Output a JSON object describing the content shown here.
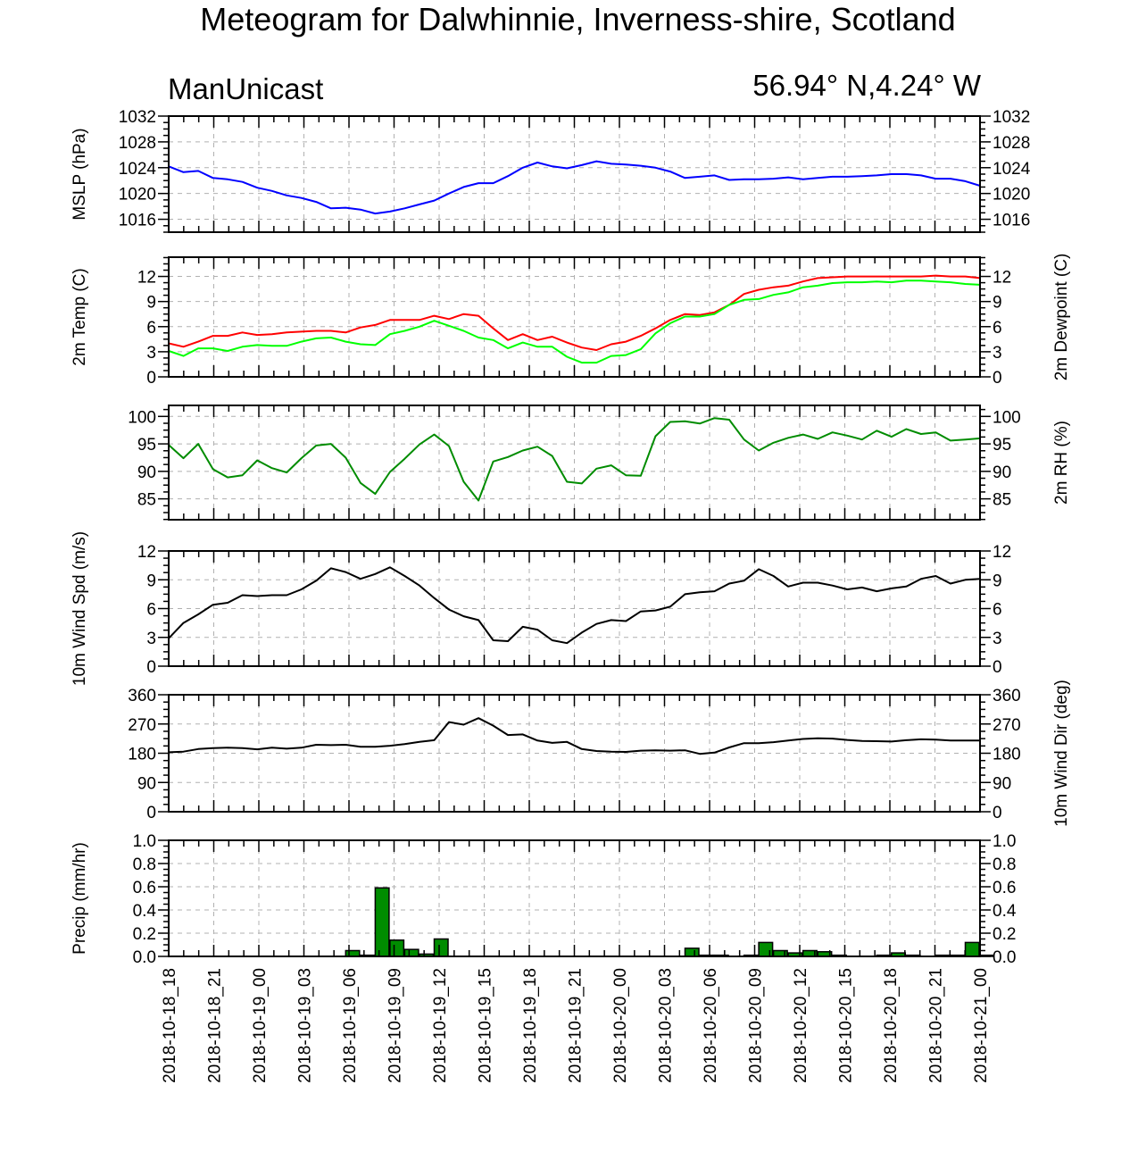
{
  "title": "Meteogram for Dalwhinnie, Inverness-shire, Scotland",
  "model": "ManUnicast",
  "coords": "56.94° N,4.24° W",
  "chart_data": {
    "type": "meteogram",
    "time_labels": [
      "2018-10-18_18",
      "2018-10-18_21",
      "2018-10-19_00",
      "2018-10-19_03",
      "2018-10-19_06",
      "2018-10-19_09",
      "2018-10-19_12",
      "2018-10-19_15",
      "2018-10-19_18",
      "2018-10-19_21",
      "2018-10-20_00",
      "2018-10-20_03",
      "2018-10-20_06",
      "2018-10-20_09",
      "2018-10-20_12",
      "2018-10-20_15",
      "2018-10-20_18",
      "2018-10-20_21",
      "2018-10-21_00"
    ],
    "panels": [
      {
        "ylabel": "MSLP (hPa)",
        "ylabel_right": "",
        "ylim": [
          1014,
          1032
        ],
        "ticks": [
          1016,
          1020,
          1024,
          1028,
          1032
        ],
        "right_ticks": true,
        "type": "line",
        "series": [
          {
            "color": "#0000ff",
            "values": [
              1024.2,
              1023.3,
              1023.5,
              1022.4,
              1022.2,
              1021.8,
              1020.9,
              1020.4,
              1019.7,
              1019.3,
              1018.7,
              1017.7,
              1017.8,
              1017.5,
              1016.9,
              1017.2,
              1017.7,
              1018.3,
              1018.9,
              1020.0,
              1021.0,
              1021.6,
              1021.6,
              1022.7,
              1024.0,
              1024.8,
              1024.2,
              1023.9,
              1024.4,
              1025.0,
              1024.6,
              1024.5,
              1024.3,
              1024.0,
              1023.4,
              1022.4,
              1022.6,
              1022.8,
              1022.1,
              1022.2,
              1022.2,
              1022.3,
              1022.5,
              1022.2,
              1022.4,
              1022.6,
              1022.6,
              1022.7,
              1022.8,
              1023.0,
              1023.0,
              1022.8,
              1022.3,
              1022.3,
              1021.9,
              1021.2
            ]
          }
        ]
      },
      {
        "ylabel": "2m Temp (C)",
        "ylabel_right": "2m Dewpoint (C)",
        "ylim": [
          0,
          14.3
        ],
        "ticks": [
          0,
          3,
          6,
          9,
          12
        ],
        "right_ticks": true,
        "type": "line",
        "series": [
          {
            "color": "#ff0000",
            "values": [
              4.0,
              3.6,
              4.2,
              4.9,
              4.9,
              5.3,
              5.0,
              5.1,
              5.3,
              5.4,
              5.5,
              5.5,
              5.3,
              5.9,
              6.2,
              6.8,
              6.8,
              6.8,
              7.3,
              6.9,
              7.5,
              7.3,
              5.8,
              4.4,
              5.1,
              4.4,
              4.8,
              4.1,
              3.5,
              3.2,
              3.9,
              4.2,
              4.9,
              5.8,
              6.8,
              7.5,
              7.4,
              7.7,
              8.6,
              9.9,
              10.4,
              10.7,
              10.9,
              11.4,
              11.8,
              11.9,
              12.0,
              12.0,
              12.0,
              12.0,
              12.0,
              12.0,
              12.1,
              12.0,
              12.0,
              11.8
            ]
          },
          {
            "color": "#00ff00",
            "values": [
              3.1,
              2.5,
              3.4,
              3.4,
              3.1,
              3.6,
              3.8,
              3.7,
              3.7,
              4.2,
              4.6,
              4.7,
              4.2,
              3.9,
              3.8,
              5.1,
              5.5,
              6.0,
              6.7,
              6.1,
              5.5,
              4.7,
              4.4,
              3.4,
              4.1,
              3.6,
              3.6,
              2.4,
              1.7,
              1.7,
              2.5,
              2.6,
              3.3,
              5.2,
              6.4,
              7.2,
              7.2,
              7.5,
              8.6,
              9.2,
              9.3,
              9.8,
              10.1,
              10.7,
              10.9,
              11.2,
              11.3,
              11.3,
              11.4,
              11.3,
              11.5,
              11.5,
              11.4,
              11.3,
              11.1,
              11.0
            ]
          }
        ]
      },
      {
        "ylabel": "",
        "ylabel_right": "2m RH (%)",
        "ylim": [
          81.2,
          102
        ],
        "ticks": [
          85,
          90,
          95,
          100
        ],
        "right_ticks": true,
        "type": "line",
        "series": [
          {
            "color": "#008c00",
            "values": [
              94.8,
              92.4,
              95.0,
              90.4,
              88.9,
              89.3,
              92.0,
              90.6,
              89.8,
              92.4,
              94.7,
              95.0,
              92.5,
              87.9,
              85.9,
              89.9,
              92.3,
              94.9,
              96.7,
              94.6,
              88.1,
              84.7,
              91.8,
              92.6,
              93.8,
              94.5,
              92.8,
              88.1,
              87.8,
              90.5,
              91.1,
              89.3,
              89.2,
              96.4,
              99.0,
              99.1,
              98.7,
              99.7,
              99.4,
              95.8,
              93.8,
              95.2,
              96.1,
              96.7,
              95.9,
              97.1,
              96.5,
              95.8,
              97.4,
              96.3,
              97.7,
              96.8,
              97.1,
              95.6,
              95.8,
              96.0
            ]
          }
        ]
      },
      {
        "ylabel": "10m Wind Spd (m/s)",
        "ylabel_right": "",
        "ylim": [
          0,
          12
        ],
        "ticks": [
          0,
          3,
          6,
          9,
          12
        ],
        "right_ticks": true,
        "type": "line",
        "series": [
          {
            "color": "#000000",
            "values": [
              2.9,
              4.5,
              5.4,
              6.4,
              6.6,
              7.4,
              7.3,
              7.4,
              7.4,
              8.0,
              8.9,
              10.2,
              9.8,
              9.1,
              9.6,
              10.3,
              9.4,
              8.4,
              7.1,
              5.9,
              5.2,
              4.8,
              2.7,
              2.6,
              4.1,
              3.8,
              2.7,
              2.4,
              3.5,
              4.4,
              4.8,
              4.7,
              5.7,
              5.8,
              6.2,
              7.5,
              7.7,
              7.8,
              8.6,
              8.9,
              10.1,
              9.4,
              8.3,
              8.7,
              8.7,
              8.4,
              8.0,
              8.2,
              7.8,
              8.1,
              8.3,
              9.1,
              9.4,
              8.6,
              9.0,
              9.1
            ]
          }
        ]
      },
      {
        "ylabel": "",
        "ylabel_right": "10m Wind Dir (deg)",
        "ylim": [
          0,
          360
        ],
        "ticks": [
          0,
          90,
          180,
          270,
          360
        ],
        "right_ticks": true,
        "type": "line",
        "series": [
          {
            "color": "#000000",
            "values": [
              183,
              185,
              193,
              196,
              197,
              196,
              192,
              197,
              194,
              197,
              206,
              205,
              206,
              200,
              200,
              203,
              208,
              215,
              220,
              276,
              268,
              288,
              265,
              236,
              238,
              219,
              212,
              215,
              193,
              187,
              185,
              184,
              188,
              189,
              188,
              189,
              178,
              182,
              198,
              211,
              211,
              214,
              219,
              224,
              226,
              225,
              221,
              218,
              217,
              216,
              220,
              223,
              222,
              219,
              219,
              219
            ]
          }
        ]
      },
      {
        "ylabel": "Precip (mm/hr)",
        "ylabel_right": "",
        "ylim": [
          0,
          1.0
        ],
        "ticks": [
          0.0,
          0.2,
          0.4,
          0.6,
          0.8,
          1.0
        ],
        "right_ticks": true,
        "type": "bar",
        "series": [
          {
            "color": "#008c00",
            "values": [
              0,
              0,
              0,
              0,
              0,
              0,
              0,
              0,
              0,
              0,
              0,
              0,
              0.05,
              0.01,
              0.59,
              0.14,
              0.06,
              0.02,
              0.15,
              0,
              0,
              0,
              0,
              0,
              0,
              0,
              0,
              0,
              0,
              0,
              0,
              0,
              0,
              0,
              0,
              0.07,
              0.01,
              0.01,
              0,
              0.01,
              0.12,
              0.05,
              0.03,
              0.05,
              0.04,
              0.01,
              0,
              0,
              0.01,
              0.03,
              0.01,
              0,
              0.01,
              0.01,
              0.12,
              0.01
            ]
          }
        ]
      }
    ]
  }
}
